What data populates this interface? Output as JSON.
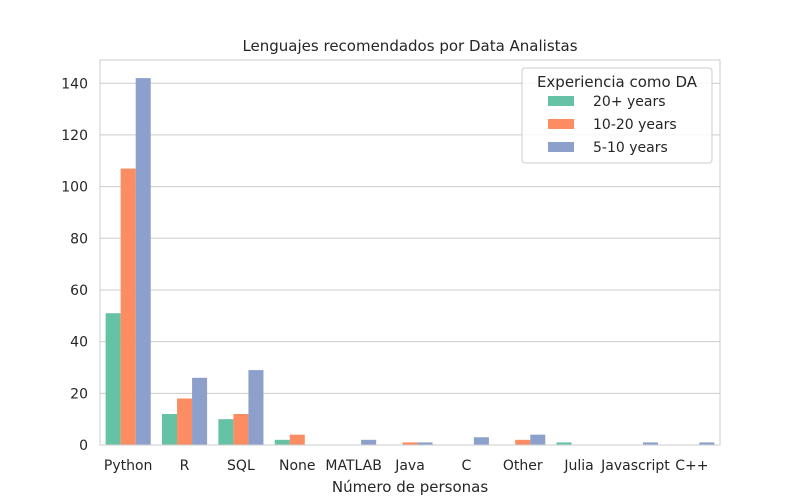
{
  "chart_data": {
    "type": "bar",
    "title": "Lenguajes recomendados por Data Analistas",
    "xlabel": "Número de personas",
    "ylabel": "",
    "categories": [
      "Python",
      "R",
      "SQL",
      "None",
      "MATLAB",
      "Java",
      "C",
      "Other",
      "Julia",
      "Javascript",
      "C++"
    ],
    "series": [
      {
        "name": "20+ years",
        "color": "#66c2a5",
        "values": [
          51,
          12,
          10,
          2,
          0,
          0,
          0,
          0,
          1,
          0,
          0
        ]
      },
      {
        "name": "10-20 years",
        "color": "#fc8d62",
        "values": [
          107,
          18,
          12,
          4,
          0,
          1,
          0,
          2,
          0,
          0,
          0
        ]
      },
      {
        "name": "5-10 years",
        "color": "#8da0cb",
        "values": [
          142,
          26,
          29,
          0,
          2,
          1,
          3,
          4,
          0,
          1,
          1
        ]
      }
    ],
    "ylim": [
      0,
      149
    ],
    "yticks": [
      0,
      20,
      40,
      60,
      80,
      100,
      120,
      140
    ],
    "grid": true,
    "legend": {
      "title": "Experiencia como DA",
      "position": "top-right"
    }
  }
}
